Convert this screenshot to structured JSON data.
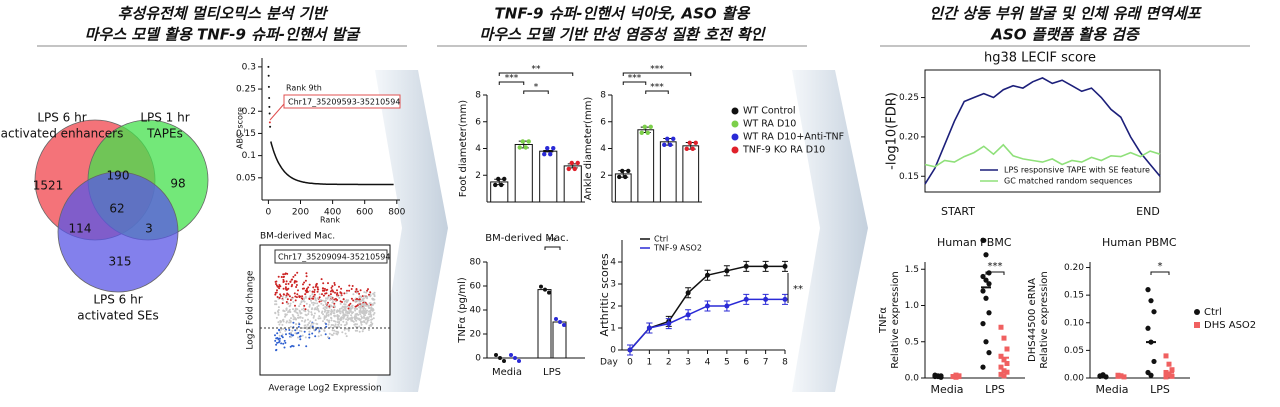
{
  "headers": [
    {
      "lines": [
        "후성유전체 멀티오믹스 분석 기반",
        "마우스 모델 활용 TNF-9 슈퍼-인핸서 발굴"
      ]
    },
    {
      "lines": [
        "TNF-9 슈퍼-인핸서 넉아웃, ASO 활용",
        "마우스 모델 기반 만성 염증성 질환 호전 확인"
      ]
    },
    {
      "lines": [
        "인간 상동 부위 발굴 및 인체 유래 면역세포",
        "ASO 플랫폼 활용 검증"
      ]
    }
  ],
  "venn": {
    "sets": [
      {
        "label": [
          "LPS 6 hr",
          "activated enhancers"
        ],
        "color": "#f0444c"
      },
      {
        "label": [
          "LPS 1 hr",
          "TAPEs"
        ],
        "color": "#44e04c"
      },
      {
        "label": [
          "LPS 6 hr",
          "activated SEs"
        ],
        "color": "#5a56e6"
      }
    ],
    "counts": [
      1521,
      190,
      98,
      62,
      114,
      3,
      315
    ]
  },
  "abc_plot": {
    "ylabel": "ABC_score",
    "xlabel": "Rank",
    "ylim": [
      0,
      0.32
    ],
    "yticks": [
      0.05,
      0.1,
      0.15,
      0.2,
      0.25,
      0.3
    ],
    "xlim": [
      -40,
      820
    ],
    "xticks": [
      0,
      200,
      400,
      600,
      800
    ],
    "annotation": "Rank 9th",
    "region": "Chr17_35209593-35210594"
  },
  "ma_plot": {
    "title": "BM-derived Mac.",
    "region": "Chr17_35209094-35210594",
    "ylabel": "Log2 Fold change",
    "xlabel": "Average Log2 Expression"
  },
  "groups": [
    {
      "name": "WT Control",
      "color": "#111111"
    },
    {
      "name": "WT RA D10",
      "color": "#7ccf4a"
    },
    {
      "name": "WT RA D10+Anti-TNF",
      "color": "#2a2ad6"
    },
    {
      "name": "TNF-9 KO RA D10",
      "color": "#e0202a"
    }
  ],
  "foot": {
    "ylabel": "Foot diameter(mm)",
    "ylim": [
      0,
      8
    ],
    "yticks": [
      2,
      4,
      6,
      8
    ],
    "values": [
      1.5,
      4.3,
      3.8,
      2.7
    ],
    "errors": [
      0.2,
      0.25,
      0.05,
      0.15
    ],
    "sig": [
      "***",
      "*",
      "**"
    ]
  },
  "ankle": {
    "ylabel": "Ankle diameter(mm)",
    "ylim": [
      0,
      8
    ],
    "yticks": [
      2,
      4,
      6,
      8
    ],
    "values": [
      2.1,
      5.4,
      4.5,
      4.2
    ],
    "errors": [
      0.25,
      0.2,
      0.25,
      0.25
    ],
    "sig": [
      "***",
      "***",
      "***"
    ]
  },
  "tnf": {
    "title": "BM-derived Mac.",
    "ylabel": "TNFα (pg/ml)",
    "ylim": [
      0,
      80
    ],
    "yticks": [
      0,
      20,
      40,
      60,
      80
    ],
    "categories": [
      "Media",
      "LPS"
    ],
    "series": [
      {
        "color": "#111111",
        "values": [
          0,
          57
        ]
      },
      {
        "color": "#2a2ad6",
        "values": [
          0,
          30
        ]
      }
    ],
    "sig": "**"
  },
  "arthritic": {
    "ylabel": "Arthritic scores",
    "xlabel": "Day",
    "ylim": [
      0,
      5
    ],
    "yticks": [
      0,
      1,
      2,
      3,
      4
    ],
    "xlim": [
      0,
      8
    ],
    "xticks": [
      0,
      1,
      2,
      3,
      4,
      5,
      6,
      7,
      8
    ],
    "x": [
      0,
      1,
      2,
      3,
      4,
      5,
      6,
      7,
      8
    ],
    "series": [
      {
        "name": "Ctrl",
        "color": "#111111",
        "values": [
          0,
          1,
          1.3,
          2.6,
          3.4,
          3.6,
          3.8,
          3.8,
          3.8
        ]
      },
      {
        "name": "TNF-9 ASO2",
        "color": "#2a2ad6",
        "values": [
          0,
          1,
          1.2,
          1.6,
          2.0,
          2.0,
          2.3,
          2.3,
          2.3
        ]
      }
    ],
    "sig": "**"
  },
  "lecif": {
    "title": "hg38 LECIF score",
    "ylabel": "-log10(FDR)",
    "ylim": [
      0.13,
      0.285
    ],
    "yticks": [
      0.15,
      {
        "value": 0.2,
        "label": "0.20"
      },
      0.25
    ],
    "x_labels": [
      "START",
      "END"
    ],
    "series": [
      {
        "name": "LPS responsive TAPE with SE feature",
        "color": "#1c1f7a",
        "values": [
          0.14,
          0.16,
          0.19,
          0.22,
          0.245,
          0.25,
          0.255,
          0.25,
          0.26,
          0.265,
          0.262,
          0.27,
          0.275,
          0.268,
          0.272,
          0.265,
          0.258,
          0.262,
          0.25,
          0.235,
          0.225,
          0.2,
          0.18,
          0.165,
          0.15
        ]
      },
      {
        "name": "GC matched random sequences",
        "color": "#8fe07a",
        "values": [
          0.165,
          0.162,
          0.17,
          0.168,
          0.175,
          0.18,
          0.188,
          0.178,
          0.19,
          0.176,
          0.172,
          0.17,
          0.168,
          0.172,
          0.165,
          0.17,
          0.168,
          0.174,
          0.17,
          0.176,
          0.175,
          0.18,
          0.175,
          0.182,
          0.178
        ]
      }
    ]
  },
  "pbmc_tnf": {
    "title": "Human PBMC",
    "ylabel": [
      "TNFα",
      "Relative expression"
    ],
    "ylim": [
      0,
      1.6
    ],
    "yticks": [
      {
        "value": 0,
        "label": "0.0"
      },
      0.5,
      {
        "value": 1,
        "label": "1.0"
      },
      1.5
    ],
    "categories": [
      "Media",
      "LPS"
    ],
    "series": [
      {
        "values": [
          0.02,
          1.25
        ],
        "points": [
          [
            0.02,
            0.03,
            0.01,
            0.04,
            0.02,
            0.03
          ],
          [
            1.9,
            1.7,
            1.45,
            1.4,
            1.35,
            1.3,
            1.2,
            1.1,
            0.9,
            0.75,
            0.5,
            0.35,
            0.15
          ]
        ]
      },
      {
        "values": [
          0.02,
          0.28
        ],
        "points": [
          [
            0.02,
            0.01,
            0.03,
            0.02,
            0.04,
            0.02
          ],
          [
            0.7,
            0.55,
            0.4,
            0.3,
            0.25,
            0.2,
            0.15,
            0.1,
            0.08,
            0.05,
            0.03
          ]
        ]
      }
    ],
    "sig": "***"
  },
  "pbmc_dhs": {
    "title": "Human PBMC",
    "ylabel": [
      "DHS44500 eRNA",
      "Relative expression"
    ],
    "ylim": [
      0,
      0.21
    ],
    "yticks": [
      {
        "value": 0,
        "label": "0.00"
      },
      0.05,
      {
        "value": 0.1,
        "label": "0.10"
      },
      0.15,
      {
        "value": 0.2,
        "label": "0.20"
      }
    ],
    "categories": [
      "Media",
      "LPS"
    ],
    "series": [
      {
        "values": [
          0.004,
          0.065
        ],
        "points": [
          [
            0.003,
            0.005,
            0.002,
            0.004,
            0.006
          ],
          [
            0.16,
            0.14,
            0.12,
            0.09,
            0.065,
            0.03,
            0.01,
            0.005
          ]
        ]
      },
      {
        "values": [
          0.004,
          0.01
        ],
        "points": [
          [
            0.003,
            0.004,
            0.002,
            0.005
          ],
          [
            0.04,
            0.025,
            0.015,
            0.01,
            0.005,
            0.003,
            0.002
          ]
        ]
      }
    ],
    "sig": "*"
  },
  "pbmc_legend": [
    {
      "name": "Ctrl",
      "color": "#111111"
    },
    {
      "name": "DHS ASO2",
      "color": "#f06060"
    }
  ]
}
